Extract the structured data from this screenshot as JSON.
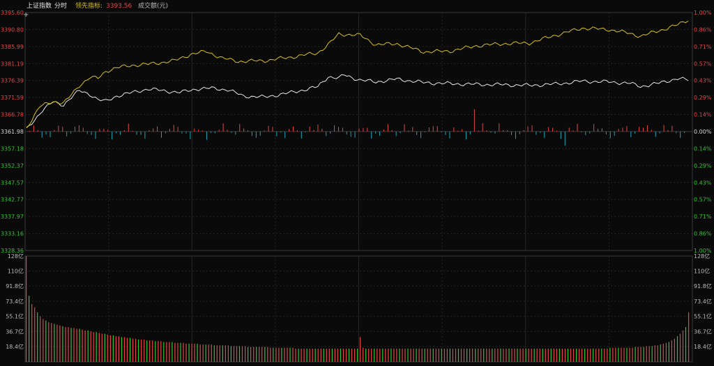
{
  "header": {
    "index_name": "上证指数",
    "mode": "分时",
    "leading_label": "领先指标:",
    "leading_value": "3393.56",
    "volume_title": "成交额(元)"
  },
  "colors": {
    "up": "#e04848",
    "down": "#35c235",
    "line_index": "#e8e8e8",
    "line_leading": "#d8c21a",
    "bar_down": "#1aa7b8",
    "grid": "#262626",
    "frame": "#3a3a3a"
  },
  "chart_data": [
    {
      "type": "line",
      "name": "intraday-price",
      "y_ticks": [
        "3395.60",
        "3390.80",
        "3385.99",
        "3381.19",
        "3376.39",
        "3371.59",
        "3366.78",
        "3361.98",
        "3357.18",
        "3352.37",
        "3347.57",
        "3342.77",
        "3337.97",
        "3333.16",
        "3328.36"
      ],
      "pct_ticks": [
        "1.00%",
        "0.86%",
        "0.71%",
        "0.57%",
        "0.43%",
        "0.29%",
        "0.14%",
        "0.00%",
        "0.14%",
        "0.29%",
        "0.43%",
        "0.57%",
        "0.71%",
        "0.86%",
        "1.00%"
      ],
      "ylim": [
        3328.36,
        3395.6
      ],
      "base": 3361.98,
      "x_points": 240,
      "series": [
        {
          "key": "index",
          "anchors": [
            [
              0,
              3362.5
            ],
            [
              6,
              3368
            ],
            [
              10,
              3370.3
            ],
            [
              14,
              3369.5
            ],
            [
              16,
              3371
            ],
            [
              20,
              3373.5
            ],
            [
              24,
              3372.5
            ],
            [
              27,
              3371
            ],
            [
              30,
              3370.5
            ],
            [
              34,
              3372
            ],
            [
              40,
              3373
            ],
            [
              46,
              3374
            ],
            [
              52,
              3373.5
            ],
            [
              58,
              3373
            ],
            [
              64,
              3374
            ],
            [
              70,
              3374.2
            ],
            [
              76,
              3373.8
            ],
            [
              82,
              3372
            ],
            [
              90,
              3371.7
            ],
            [
              100,
              3373
            ],
            [
              110,
              3374.6
            ],
            [
              114,
              3377.5
            ],
            [
              118,
              3377
            ],
            [
              120,
              3378
            ],
            [
              126,
              3376.5
            ],
            [
              132,
              3376
            ],
            [
              140,
              3376.8
            ],
            [
              150,
              3375.8
            ],
            [
              160,
              3375.5
            ],
            [
              170,
              3375.3
            ],
            [
              180,
              3375.2
            ],
            [
              190,
              3375
            ],
            [
              200,
              3375.4
            ],
            [
              210,
              3376.2
            ],
            [
              220,
              3376
            ],
            [
              228,
              3375.6
            ],
            [
              232,
              3374.7
            ],
            [
              240,
              3375.8
            ],
            [
              246,
              3377
            ],
            [
              250,
              3376.5
            ]
          ]
        },
        {
          "key": "leading",
          "anchors": [
            [
              0,
              3363
            ],
            [
              5,
              3369
            ],
            [
              10,
              3370.5
            ],
            [
              14,
              3370
            ],
            [
              16,
              3371.5
            ],
            [
              20,
              3375
            ],
            [
              24,
              3377.3
            ],
            [
              27,
              3377
            ],
            [
              30,
              3379
            ],
            [
              34,
              3380
            ],
            [
              40,
              3380.7
            ],
            [
              46,
              3381
            ],
            [
              50,
              3381.4
            ],
            [
              56,
              3382
            ],
            [
              62,
              3383.8
            ],
            [
              68,
              3384.6
            ],
            [
              74,
              3382.7
            ],
            [
              80,
              3381.8
            ],
            [
              90,
              3382
            ],
            [
              100,
              3383
            ],
            [
              110,
              3384.2
            ],
            [
              114,
              3386.5
            ],
            [
              118,
              3389.5
            ],
            [
              126,
              3389.2
            ],
            [
              132,
              3386.5
            ],
            [
              140,
              3386.8
            ],
            [
              150,
              3384.5
            ],
            [
              160,
              3384.7
            ],
            [
              170,
              3386.2
            ],
            [
              180,
              3386.8
            ],
            [
              190,
              3387
            ],
            [
              200,
              3389.2
            ],
            [
              210,
              3391.2
            ],
            [
              220,
              3390.8
            ],
            [
              228,
              3389.7
            ],
            [
              232,
              3388.9
            ],
            [
              240,
              3390.7
            ],
            [
              246,
              3392.1
            ],
            [
              250,
              3393.56
            ]
          ]
        }
      ]
    },
    {
      "type": "bar",
      "name": "turnover",
      "y_ticks": [
        "128亿",
        "110亿",
        "91.8亿",
        "73.4亿",
        "55.1亿",
        "36.7亿",
        "18.4亿"
      ],
      "ylim": [
        0,
        128
      ],
      "values": [
        128,
        80,
        70,
        66,
        60,
        55,
        52,
        50,
        48,
        47,
        46,
        45,
        44,
        43,
        42,
        42,
        41,
        41,
        40,
        40,
        39,
        38,
        38,
        37,
        36,
        36,
        35,
        34,
        34,
        33,
        32,
        32,
        31,
        31,
        30,
        30,
        29,
        29,
        28,
        28,
        27,
        27,
        27,
        26,
        26,
        26,
        25,
        25,
        25,
        24,
        24,
        24,
        24,
        23,
        23,
        23,
        23,
        22,
        22,
        22,
        22,
        22,
        21,
        21,
        21,
        21,
        21,
        20,
        20,
        20,
        20,
        20,
        20,
        19,
        19,
        19,
        19,
        19,
        19,
        18,
        18,
        18,
        18,
        18,
        18,
        18,
        18,
        17,
        17,
        17,
        17,
        17,
        17,
        17,
        17,
        17,
        16,
        16,
        16,
        16,
        16,
        16,
        16,
        16,
        16,
        16,
        16,
        16,
        16,
        16,
        16,
        16,
        16,
        16,
        16,
        16,
        16,
        16,
        16,
        30,
        17,
        16,
        16,
        16,
        16,
        16,
        16,
        16,
        16,
        16,
        16,
        16,
        16,
        16,
        16,
        16,
        16,
        16,
        16,
        16,
        16,
        16,
        16,
        16,
        16,
        16,
        16,
        16,
        16,
        16,
        16,
        16,
        16,
        16,
        16,
        16,
        16,
        16,
        16,
        16,
        16,
        16,
        16,
        16,
        16,
        16,
        16,
        16,
        16,
        16,
        16,
        16,
        16,
        16,
        16,
        16,
        16,
        16,
        16,
        16,
        16,
        16,
        16,
        16,
        16,
        16,
        16,
        16,
        16,
        16,
        16,
        16,
        16,
        16,
        16,
        16,
        16,
        16,
        16,
        16,
        16,
        16,
        16,
        16,
        16,
        16,
        16,
        16,
        17,
        17,
        17,
        17,
        17,
        17,
        17,
        17,
        17,
        18,
        18,
        18,
        18,
        19,
        19,
        19,
        20,
        20,
        21,
        22,
        23,
        24,
        26,
        28,
        31,
        34,
        38,
        42,
        60
      ]
    }
  ]
}
